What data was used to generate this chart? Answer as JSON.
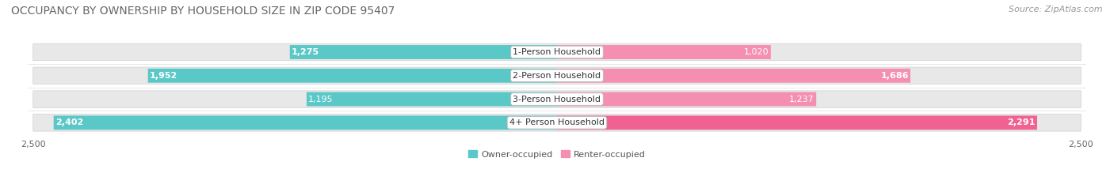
{
  "title": "OCCUPANCY BY OWNERSHIP BY HOUSEHOLD SIZE IN ZIP CODE 95407",
  "source": "Source: ZipAtlas.com",
  "categories": [
    "1-Person Household",
    "2-Person Household",
    "3-Person Household",
    "4+ Person Household"
  ],
  "owner_values": [
    1275,
    1952,
    1195,
    2402
  ],
  "renter_values": [
    1020,
    1686,
    1237,
    2291
  ],
  "owner_color": "#5bc8c8",
  "renter_color": "#f48fb1",
  "renter_color_strong": "#f06292",
  "bar_bg_color": "#e8e8e8",
  "bar_border_color": "#d0d0d0",
  "background_color": "#ffffff",
  "xlim": 2500,
  "legend_owner": "Owner-occupied",
  "legend_renter": "Renter-occupied",
  "title_fontsize": 10,
  "source_fontsize": 8,
  "tick_fontsize": 8,
  "label_fontsize": 8,
  "bar_height": 0.6,
  "n_rows": 4
}
